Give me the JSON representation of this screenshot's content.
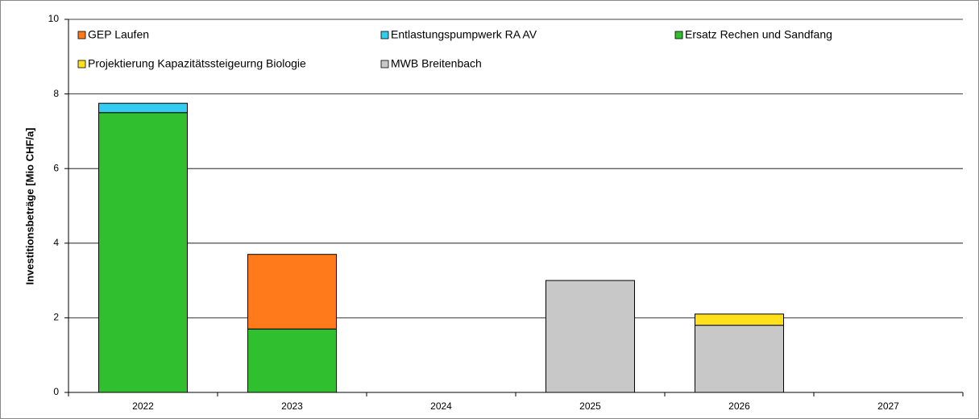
{
  "chart_data": {
    "type": "stacked_bar",
    "y_label": "Investitionsbeträge [Mio CHF/a]",
    "categories": [
      "2022",
      "2023",
      "2024",
      "2025",
      "2026",
      "2027"
    ],
    "series": [
      {
        "name": "GEP Laufen",
        "color": "#ff7a1a",
        "values": [
          null,
          2.0,
          null,
          null,
          null,
          null
        ]
      },
      {
        "name": "Entlastungspumpwerk RA AV",
        "color": "#33ccee",
        "values": [
          0.25,
          null,
          null,
          null,
          null,
          null
        ]
      },
      {
        "name": "Ersatz Rechen und Sandfang",
        "color": "#2fbf2f",
        "values": [
          7.5,
          1.7,
          null,
          null,
          null,
          null
        ]
      },
      {
        "name": "Projektierung Kapazitätssteigeurng Biologie",
        "color": "#ffe01a",
        "values": [
          null,
          null,
          null,
          null,
          0.3,
          null
        ]
      },
      {
        "name": "MWB Breitenbach",
        "color": "#c8c8c8",
        "values": [
          null,
          null,
          null,
          3.0,
          1.8,
          null
        ]
      }
    ],
    "ylim": [
      0,
      10
    ],
    "yticks": [
      0,
      2,
      4,
      6,
      8,
      10
    ],
    "grid": true
  }
}
